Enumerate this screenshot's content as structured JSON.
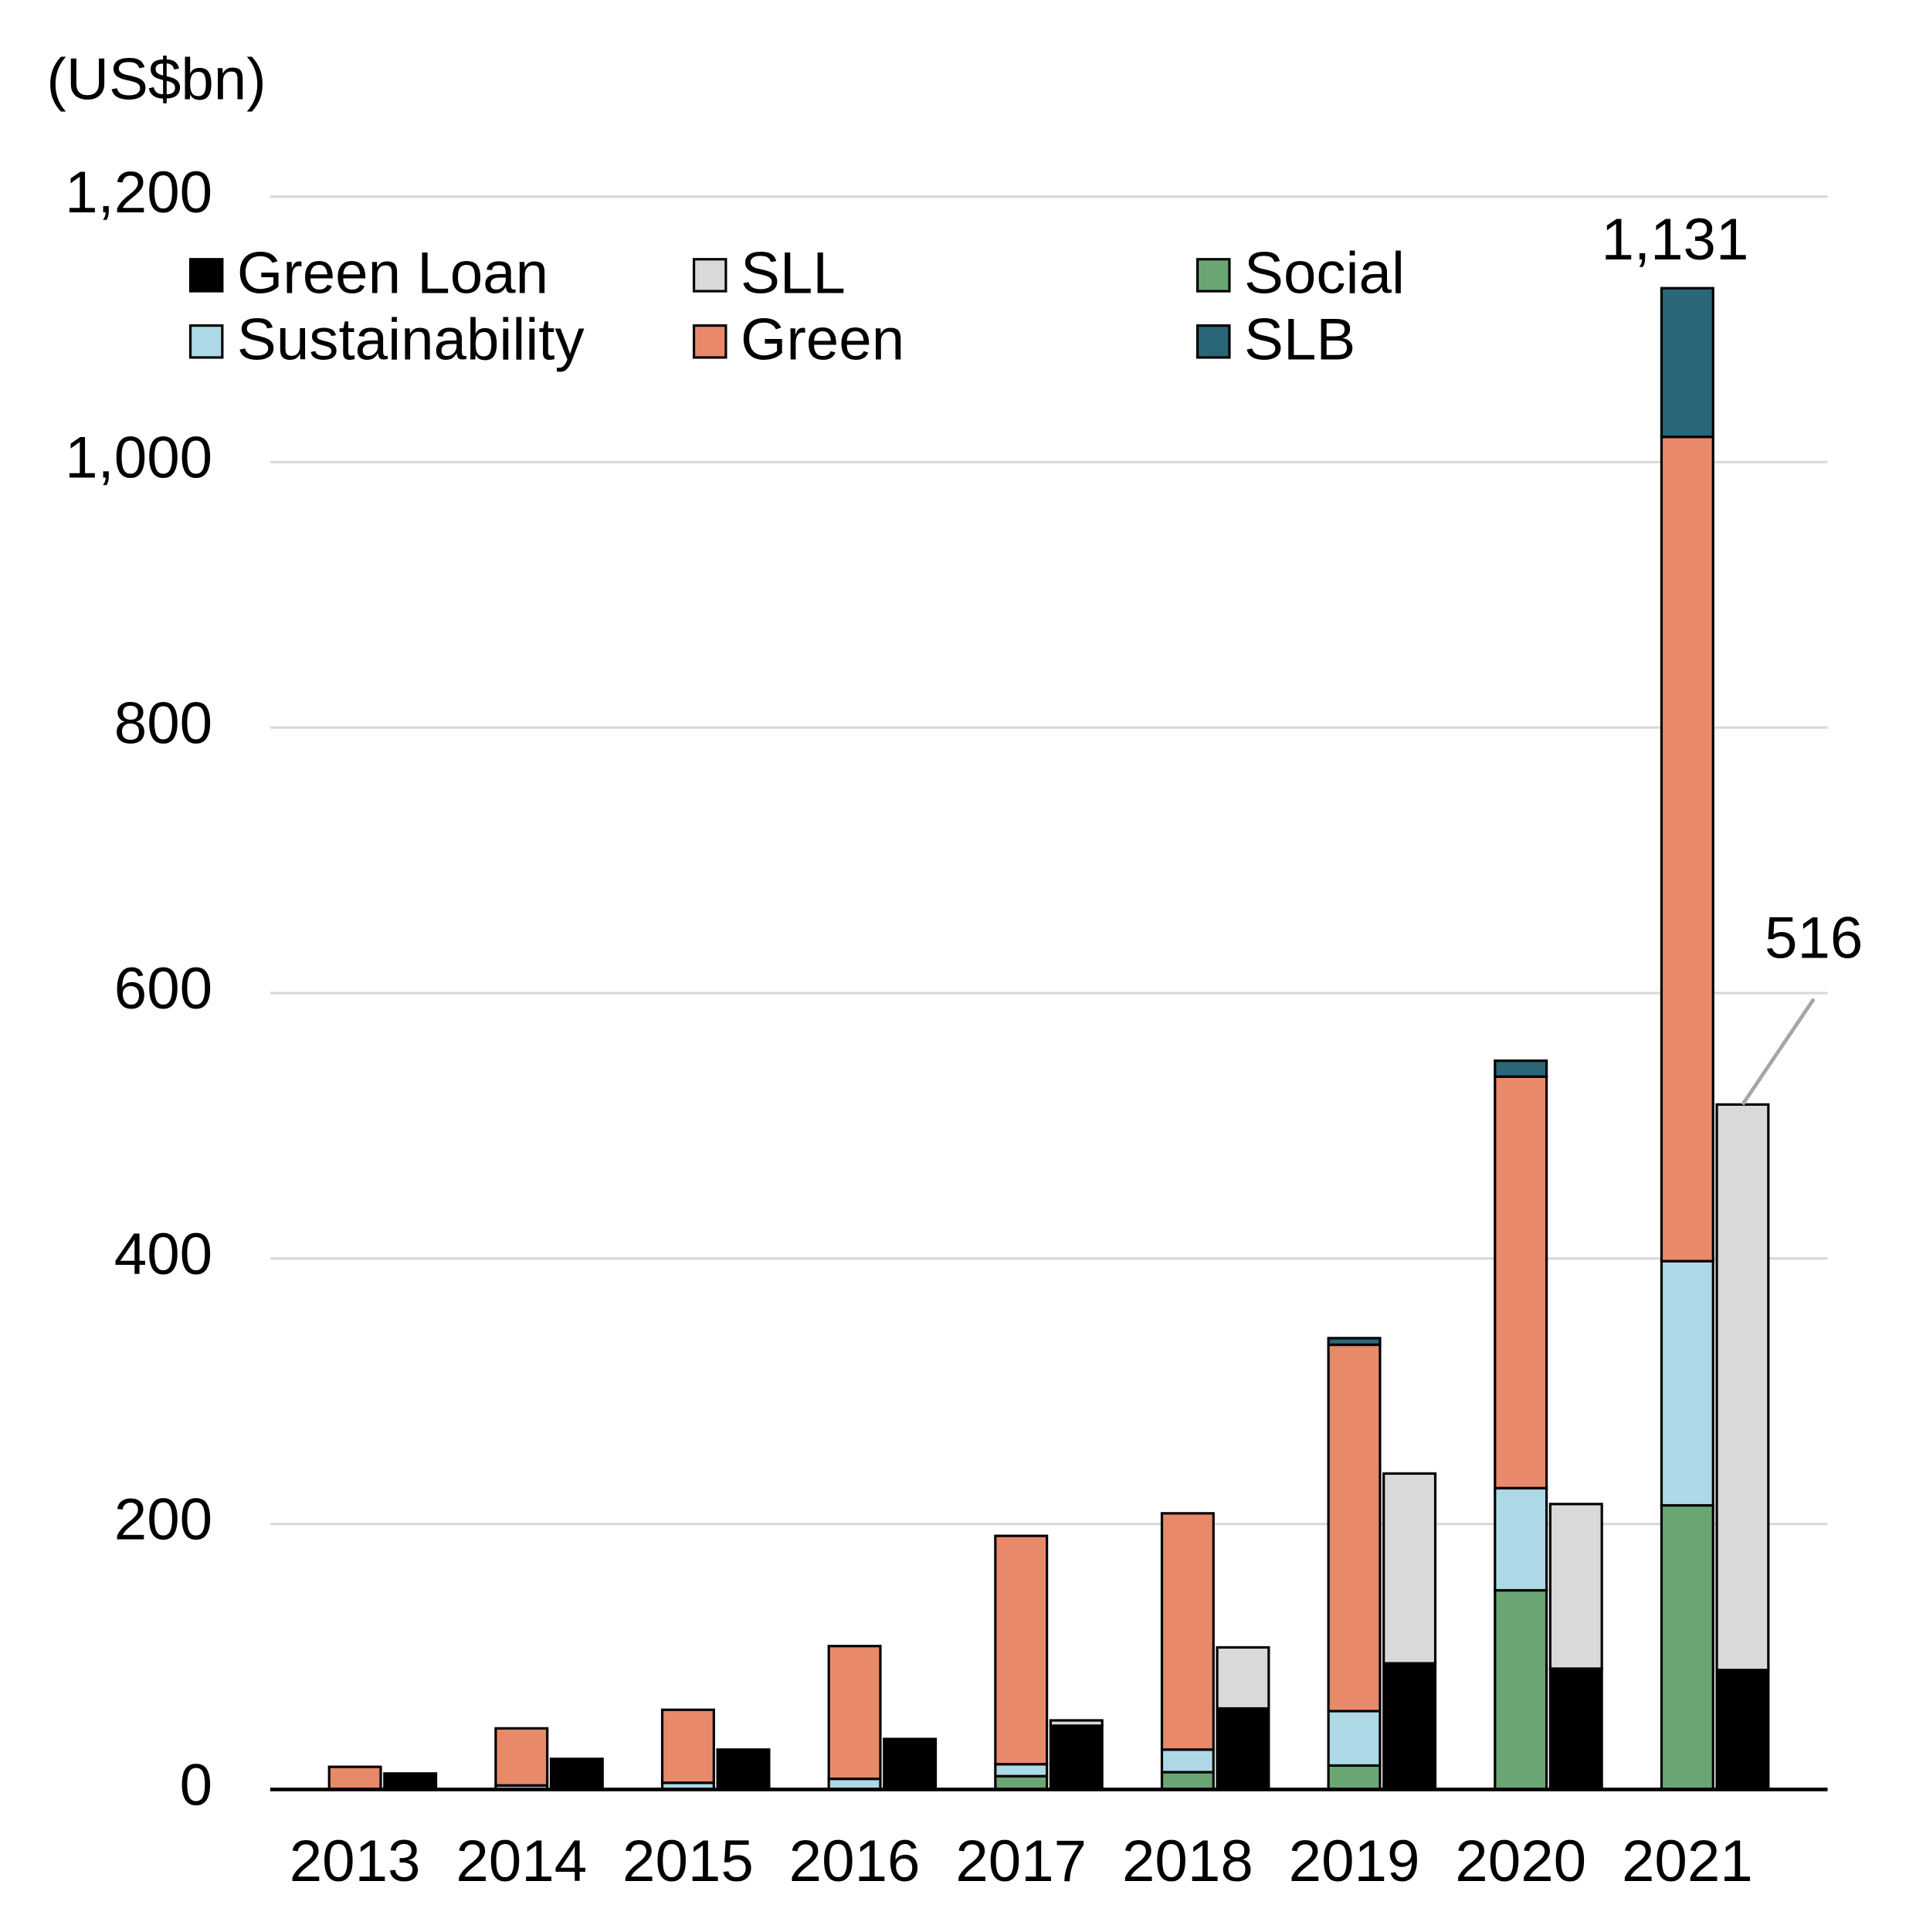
{
  "chart_data": {
    "type": "stacked-grouped-bar",
    "y_label": "(US$bn)",
    "categories": [
      "2013",
      "2014",
      "2015",
      "2016",
      "2017",
      "2018",
      "2019",
      "2020",
      "2021"
    ],
    "series": [
      {
        "name": "Green Loan",
        "color": "#000000",
        "stack": "loans",
        "values": [
          12,
          23,
          30,
          38,
          48,
          61,
          95,
          91,
          90
        ]
      },
      {
        "name": "SLL",
        "color": "#d9d9d9",
        "stack": "loans",
        "values": [
          0,
          0,
          0,
          0,
          4,
          46,
          143,
          124,
          426
        ]
      },
      {
        "name": "Social",
        "color": "#6aa673",
        "stack": "bonds",
        "values": [
          0,
          0,
          0,
          0,
          10,
          13,
          18,
          150,
          214
        ]
      },
      {
        "name": "Sustainability",
        "color": "#add8e6",
        "stack": "bonds",
        "values": [
          0,
          3,
          5,
          8,
          9,
          17,
          41,
          77,
          184
        ]
      },
      {
        "name": "Green",
        "color": "#e8896a",
        "stack": "bonds",
        "values": [
          17,
          43,
          55,
          100,
          172,
          178,
          276,
          310,
          621
        ]
      },
      {
        "name": "SLB",
        "color": "#2a6677",
        "stack": "bonds",
        "values": [
          0,
          0,
          0,
          0,
          0,
          0,
          5,
          12,
          112
        ]
      }
    ],
    "annotations": [
      {
        "text": "1,131",
        "value": 1131,
        "category": 8,
        "stack": "bonds"
      },
      {
        "text": "516",
        "value": 516,
        "category": 8,
        "stack": "loans"
      }
    ],
    "ylim": [
      0,
      1200
    ],
    "yticks": [
      0,
      200,
      400,
      600,
      800,
      {
        "value": 1000,
        "label": "1,000"
      },
      {
        "value": 1200,
        "label": "1,200"
      }
    ],
    "grid": true
  }
}
